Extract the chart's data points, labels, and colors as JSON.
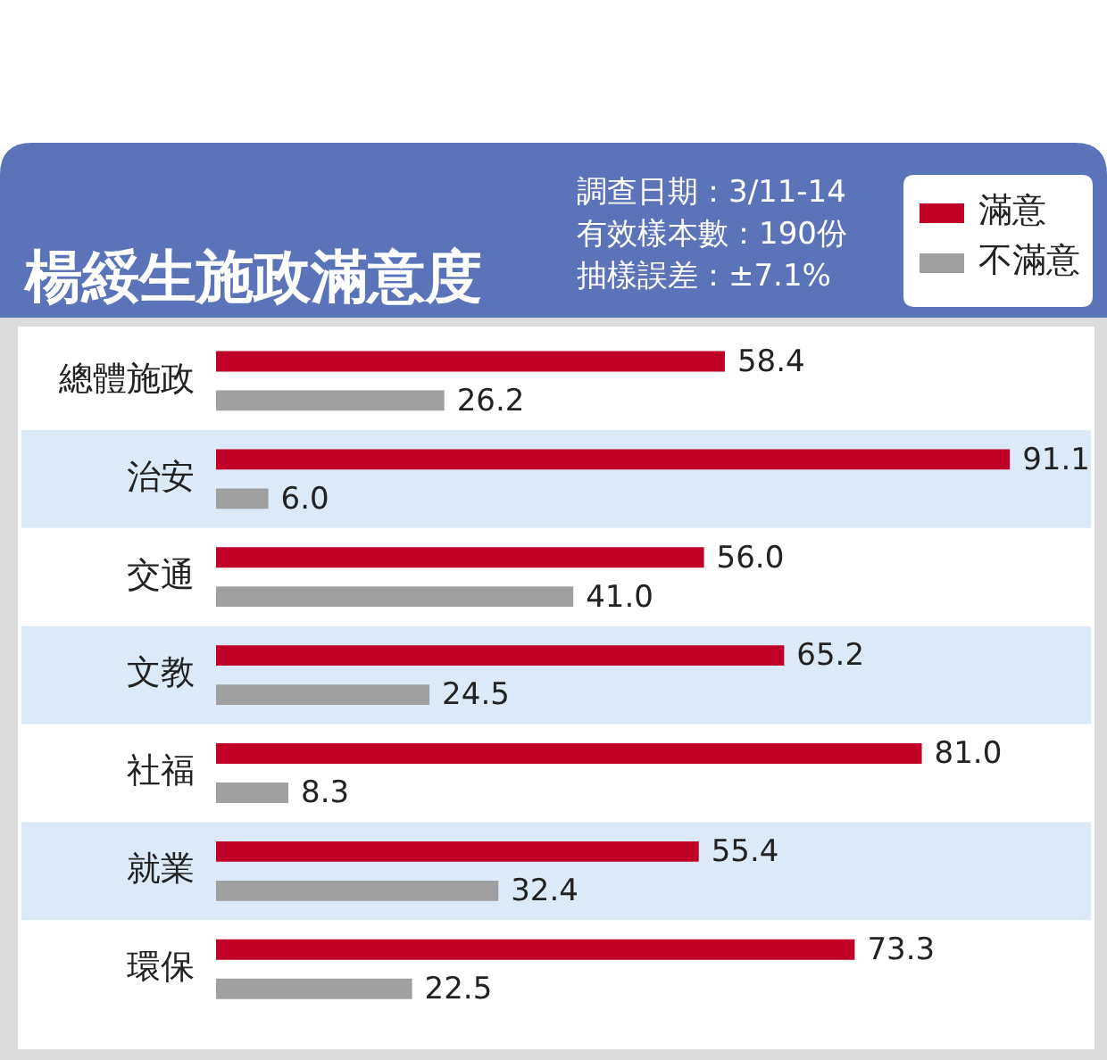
{
  "chart_data": {
    "type": "bar",
    "orientation": "horizontal",
    "title": "楊綏生施政滿意度",
    "annotations": [
      "調查日期：3/11-14",
      "有效樣本數：190份",
      "抽樣誤差：±7.1%"
    ],
    "categories": [
      "總體施政",
      "治安",
      "交通",
      "文教",
      "社福",
      "就業",
      "環保"
    ],
    "series": [
      {
        "name": "滿意",
        "color": "#c00027",
        "values": [
          58.4,
          91.1,
          56.0,
          65.2,
          81.0,
          55.4,
          73.3
        ],
        "value_labels": [
          "58.4",
          "91.1",
          "56.0",
          "65.2",
          "81.0",
          "55.4",
          "73.3"
        ]
      },
      {
        "name": "不滿意",
        "color": "#a0a0a0",
        "values": [
          26.2,
          6.0,
          41.0,
          24.5,
          8.3,
          32.4,
          22.5
        ],
        "value_labels": [
          "26.2",
          "6.0",
          "41.0",
          "24.5",
          "8.3",
          "32.4",
          "22.5"
        ]
      }
    ],
    "xlim": [
      0,
      100
    ],
    "tick_labels": "y",
    "legend": "top right",
    "bands": [
      {
        "axis": "y",
        "from": "治安",
        "to": "治安",
        "color": "#dceaf8"
      },
      {
        "axis": "y",
        "from": "文教",
        "to": "文教",
        "color": "#dceaf8"
      },
      {
        "axis": "y",
        "from": "就業",
        "to": "就業",
        "color": "#dceaf8"
      }
    ]
  }
}
